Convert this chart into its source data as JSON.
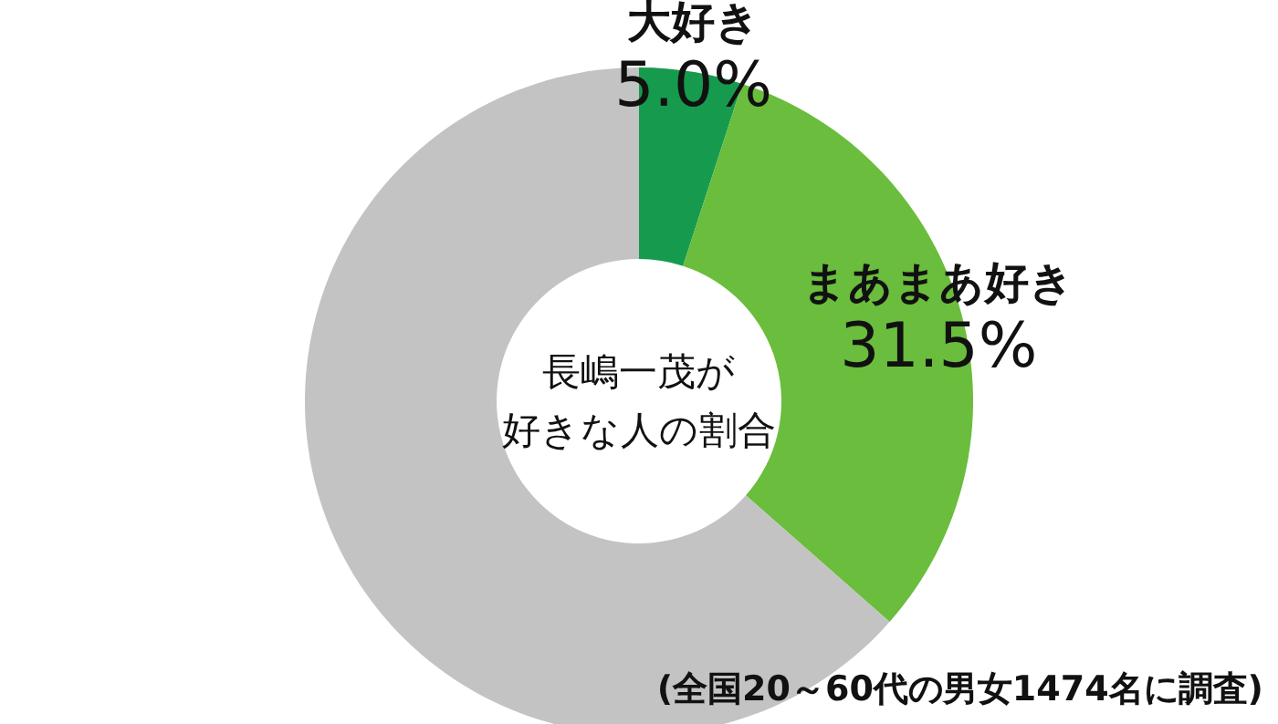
{
  "chart_data": {
    "type": "donut",
    "title": "長嶋一茂が",
    "subtitle": "好きな人の割合",
    "categories": [
      "大好き",
      "まあまあ好き",
      null
    ],
    "values": [
      5.0,
      31.5,
      63.5
    ],
    "colors": [
      "#169b4e",
      "#6abd3d",
      "#c3c3c3"
    ],
    "value_labels": [
      "5.0%",
      "31.5%",
      null
    ],
    "annotations": [
      "(全国20～60代の男女1474名に調査)"
    ]
  }
}
